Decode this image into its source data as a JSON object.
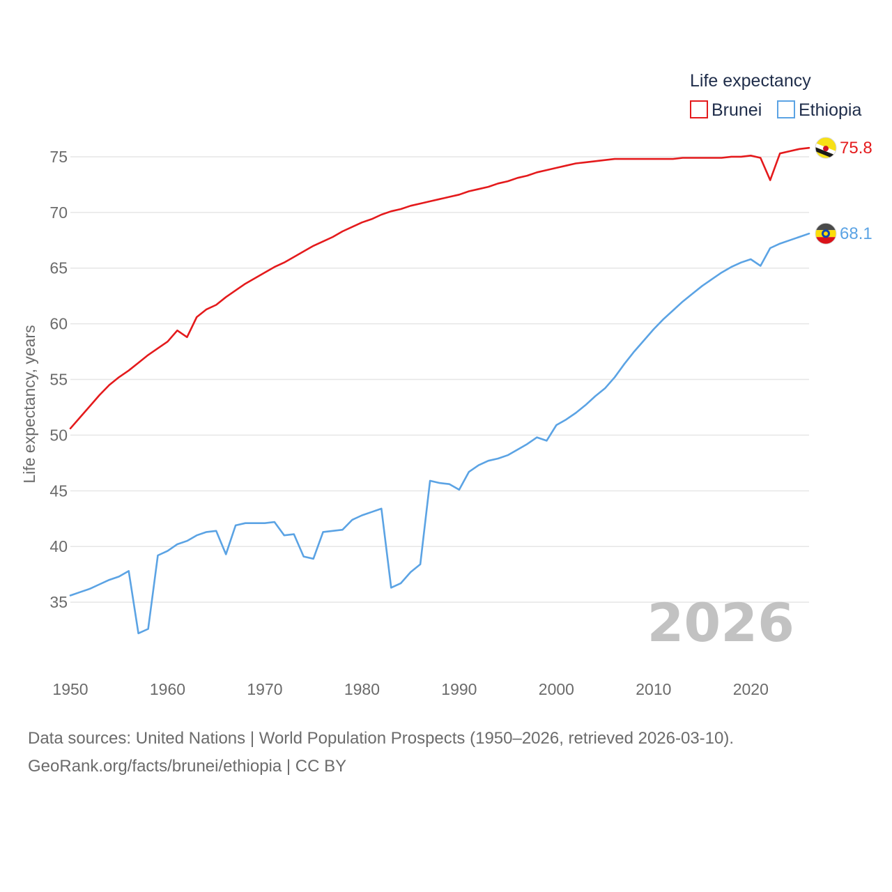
{
  "chart_data": {
    "type": "line",
    "title": "",
    "ylabel": "Life expectancy, years",
    "xlabel": "",
    "ylim": [
      30,
      77.5
    ],
    "xlim": [
      1950,
      2026
    ],
    "yticks": [
      35,
      40,
      45,
      50,
      55,
      60,
      65,
      70,
      75
    ],
    "xticks": [
      1950,
      1960,
      1970,
      1980,
      1990,
      2000,
      2010,
      2020
    ],
    "grid": true,
    "legend": {
      "title": "Life expectancy",
      "placement": "top-right"
    },
    "year_watermark": "2026",
    "series": [
      {
        "name": "Brunei",
        "color": "#e41a1c",
        "end_label": "75.8",
        "flag_icon": "brunei-flag-icon",
        "x": [
          1950,
          1951,
          1952,
          1953,
          1954,
          1955,
          1956,
          1957,
          1958,
          1959,
          1960,
          1961,
          1962,
          1963,
          1964,
          1965,
          1966,
          1967,
          1968,
          1969,
          1970,
          1971,
          1972,
          1973,
          1974,
          1975,
          1976,
          1977,
          1978,
          1979,
          1980,
          1981,
          1982,
          1983,
          1984,
          1985,
          1986,
          1987,
          1988,
          1989,
          1990,
          1991,
          1992,
          1993,
          1994,
          1995,
          1996,
          1997,
          1998,
          1999,
          2000,
          2001,
          2002,
          2003,
          2004,
          2005,
          2006,
          2007,
          2008,
          2009,
          2010,
          2011,
          2012,
          2013,
          2014,
          2015,
          2016,
          2017,
          2018,
          2019,
          2020,
          2021,
          2022,
          2023,
          2024,
          2025,
          2026
        ],
        "values": [
          50.6,
          51.6,
          52.6,
          53.6,
          54.5,
          55.2,
          55.8,
          56.5,
          57.2,
          57.8,
          58.4,
          59.4,
          58.8,
          60.6,
          61.3,
          61.7,
          62.4,
          63.0,
          63.6,
          64.1,
          64.6,
          65.1,
          65.5,
          66.0,
          66.5,
          67.0,
          67.4,
          67.8,
          68.3,
          68.7,
          69.1,
          69.4,
          69.8,
          70.1,
          70.3,
          70.6,
          70.8,
          71.0,
          71.2,
          71.4,
          71.6,
          71.9,
          72.1,
          72.3,
          72.6,
          72.8,
          73.1,
          73.3,
          73.6,
          73.8,
          74.0,
          74.2,
          74.4,
          74.5,
          74.6,
          74.7,
          74.8,
          74.8,
          74.8,
          74.8,
          74.8,
          74.8,
          74.8,
          74.9,
          74.9,
          74.9,
          74.9,
          74.9,
          75.0,
          75.0,
          75.1,
          74.9,
          72.9,
          75.3,
          75.5,
          75.7,
          75.8
        ]
      },
      {
        "name": "Ethiopia",
        "color": "#5ba3e4",
        "end_label": "68.1",
        "flag_icon": "ethiopia-flag-icon",
        "x": [
          1950,
          1951,
          1952,
          1953,
          1954,
          1955,
          1956,
          1957,
          1958,
          1959,
          1960,
          1961,
          1962,
          1963,
          1964,
          1965,
          1966,
          1967,
          1968,
          1969,
          1970,
          1971,
          1972,
          1973,
          1974,
          1975,
          1976,
          1977,
          1978,
          1979,
          1980,
          1981,
          1982,
          1983,
          1984,
          1985,
          1986,
          1987,
          1988,
          1989,
          1990,
          1991,
          1992,
          1993,
          1994,
          1995,
          1996,
          1997,
          1998,
          1999,
          2000,
          2001,
          2002,
          2003,
          2004,
          2005,
          2006,
          2007,
          2008,
          2009,
          2010,
          2011,
          2012,
          2013,
          2014,
          2015,
          2016,
          2017,
          2018,
          2019,
          2020,
          2021,
          2022,
          2023,
          2024,
          2025,
          2026
        ],
        "values": [
          35.6,
          35.9,
          36.2,
          36.6,
          37.0,
          37.3,
          37.8,
          32.2,
          32.6,
          39.2,
          39.6,
          40.2,
          40.5,
          41.0,
          41.3,
          41.4,
          39.3,
          41.9,
          42.1,
          42.1,
          42.1,
          42.2,
          41.0,
          41.1,
          39.1,
          38.9,
          41.3,
          41.4,
          41.5,
          42.4,
          42.8,
          43.1,
          43.4,
          36.3,
          36.7,
          37.7,
          38.4,
          45.9,
          45.7,
          45.6,
          45.1,
          46.7,
          47.3,
          47.7,
          47.9,
          48.2,
          48.7,
          49.2,
          49.8,
          49.5,
          50.9,
          51.4,
          52.0,
          52.7,
          53.5,
          54.2,
          55.2,
          56.4,
          57.5,
          58.5,
          59.5,
          60.4,
          61.2,
          62.0,
          62.7,
          63.4,
          64.0,
          64.6,
          65.1,
          65.5,
          65.8,
          65.2,
          66.8,
          67.2,
          67.5,
          67.8,
          68.1
        ]
      }
    ]
  },
  "footer": {
    "source_line": "Data sources: United Nations | World Population Prospects (1950–2026, retrieved 2026-03-10).",
    "attribution_line": "GeoRank.org/facts/brunei/ethiopia | CC BY"
  }
}
